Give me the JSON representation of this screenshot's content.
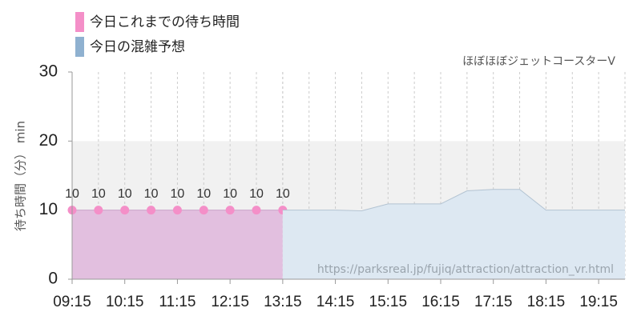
{
  "chart_data": {
    "type": "area",
    "annotation": "ほぼほぼジェットコースターV",
    "watermark": "https://parksreal.jp/fujiq/attraction/attraction_vr.html",
    "y_label": "待ち時間（分） min",
    "xlim": [
      "09:15",
      "19:45"
    ],
    "xticks": [
      "09:15",
      "10:15",
      "11:15",
      "12:15",
      "13:15",
      "14:15",
      "15:15",
      "16:15",
      "17:15",
      "18:15",
      "19:15"
    ],
    "ylim": [
      0,
      30
    ],
    "yticks": [
      0,
      10,
      20,
      30
    ],
    "shaded_range": [
      10,
      20
    ],
    "grid": true,
    "series": [
      {
        "name": "今日これまでの待ち時間",
        "color": "#f48fc8",
        "fill": "#e2bfdf",
        "markers": true,
        "data_labels": true,
        "x": [
          "09:15",
          "09:45",
          "10:15",
          "10:45",
          "11:15",
          "11:45",
          "12:15",
          "12:45",
          "13:15"
        ],
        "values": [
          10,
          10,
          10,
          10,
          10,
          10,
          10,
          10,
          10
        ]
      },
      {
        "name": "今日の混雑予想",
        "color": "#8fb1d0",
        "fill": "#dde8f2",
        "markers": false,
        "data_labels": false,
        "x": [
          "13:15",
          "13:45",
          "14:15",
          "14:45",
          "15:15",
          "15:45",
          "16:15",
          "16:45",
          "17:15",
          "17:45",
          "18:15",
          "18:45",
          "19:15",
          "19:45"
        ],
        "values": [
          10,
          10,
          10,
          9.9,
          10.9,
          10.9,
          10.9,
          12.8,
          13,
          13,
          10,
          10,
          10,
          10
        ]
      }
    ]
  }
}
